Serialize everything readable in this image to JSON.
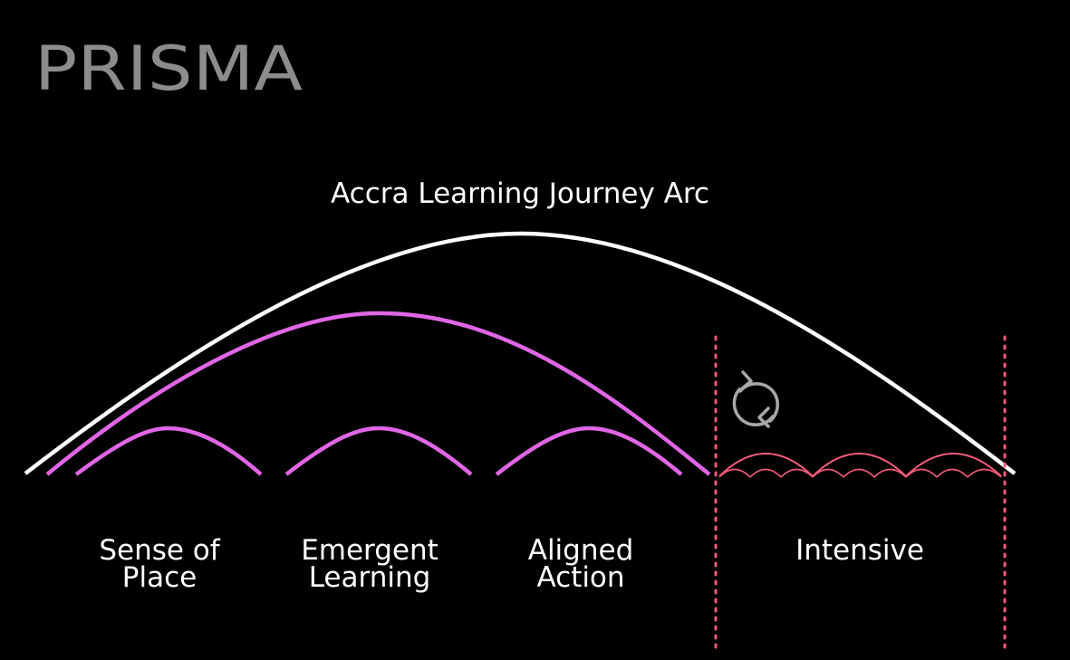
{
  "logo": {
    "text": "PRISMA",
    "color": "#8c8c8c"
  },
  "diagram": {
    "title": "Accra Learning Journey Arc",
    "phases": [
      {
        "line1": "Sense of",
        "line2": "Place"
      },
      {
        "line1": "Emergent",
        "line2": "Learning"
      },
      {
        "line1": "Aligned",
        "line2": "Action"
      },
      {
        "line1": "Intensive",
        "line2": ""
      }
    ],
    "colors": {
      "background": "#000000",
      "main_arc": "#ffffff",
      "phase_arcs": "#e066e6",
      "intensive_arcs": "#f05a78",
      "divider": "#f05a78",
      "cycle_icon": "#a8a8a8",
      "text": "#ffffff"
    },
    "icons": {
      "cycle": "cycle-arrows-icon"
    }
  }
}
